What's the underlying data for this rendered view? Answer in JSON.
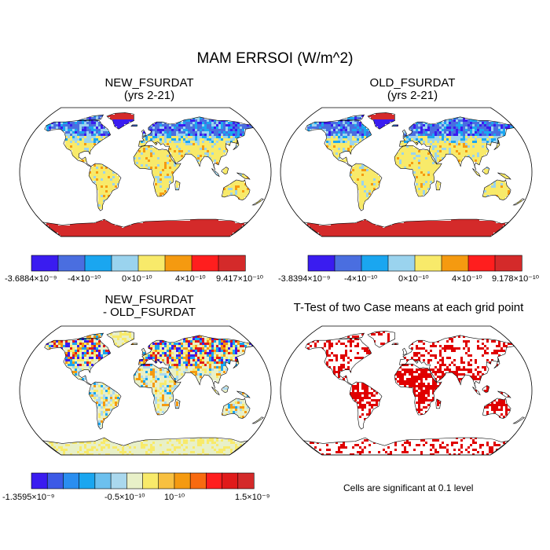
{
  "figure": {
    "title": "MAM ERRSOI (W/m^2)"
  },
  "panels": [
    {
      "title_line1": "NEW_FSURDAT",
      "title_line2": "(yrs 2-21)"
    },
    {
      "title_line1": "OLD_FSURDAT",
      "title_line2": "(yrs 2-21)"
    },
    {
      "title_line1": "NEW_FSURDAT",
      "title_line2": "- OLD_FSURDAT"
    },
    {
      "title_line1": "T-Test of two Case means at each grid point",
      "title_line2": ""
    }
  ],
  "colorbars": {
    "new": {
      "colors": [
        "#3a1cf0",
        "#4a6ee0",
        "#1aa6f0",
        "#9ad3ee",
        "#f8ea6a",
        "#f59a10",
        "#ff1e1e",
        "#d42a2a"
      ],
      "ticks": [
        "-3.6884×10⁻⁹",
        "-4×10⁻¹⁰",
        "0×10⁻¹⁰",
        "4×10⁻¹⁰",
        "9.417×10⁻¹⁰"
      ]
    },
    "old": {
      "colors": [
        "#3a1cf0",
        "#4a6ee0",
        "#1aa6f0",
        "#9ad3ee",
        "#f8ea6a",
        "#f59a10",
        "#ff1e1e",
        "#d42a2a"
      ],
      "ticks": [
        "-3.8394×10⁻⁹",
        "-4×10⁻¹⁰",
        "0×10⁻¹⁰",
        "4×10⁻¹⁰",
        "9.178×10⁻¹⁰"
      ]
    },
    "diff": {
      "colors": [
        "#3a1cf0",
        "#3c5ae6",
        "#2a8ef0",
        "#1aa6f0",
        "#6cc0ee",
        "#aad8ee",
        "#e8f0c8",
        "#f8ea6a",
        "#f8c040",
        "#f59a10",
        "#f86a10",
        "#ff1e1e",
        "#e01a1a",
        "#d42a2a"
      ],
      "ticks": [
        "-1.3595×10⁻⁹",
        "-0.5×10⁻¹⁰",
        "10⁻¹⁰",
        "1.5×10⁻⁹"
      ]
    }
  },
  "significance_note": "Cells are significant at 0.1 level"
}
